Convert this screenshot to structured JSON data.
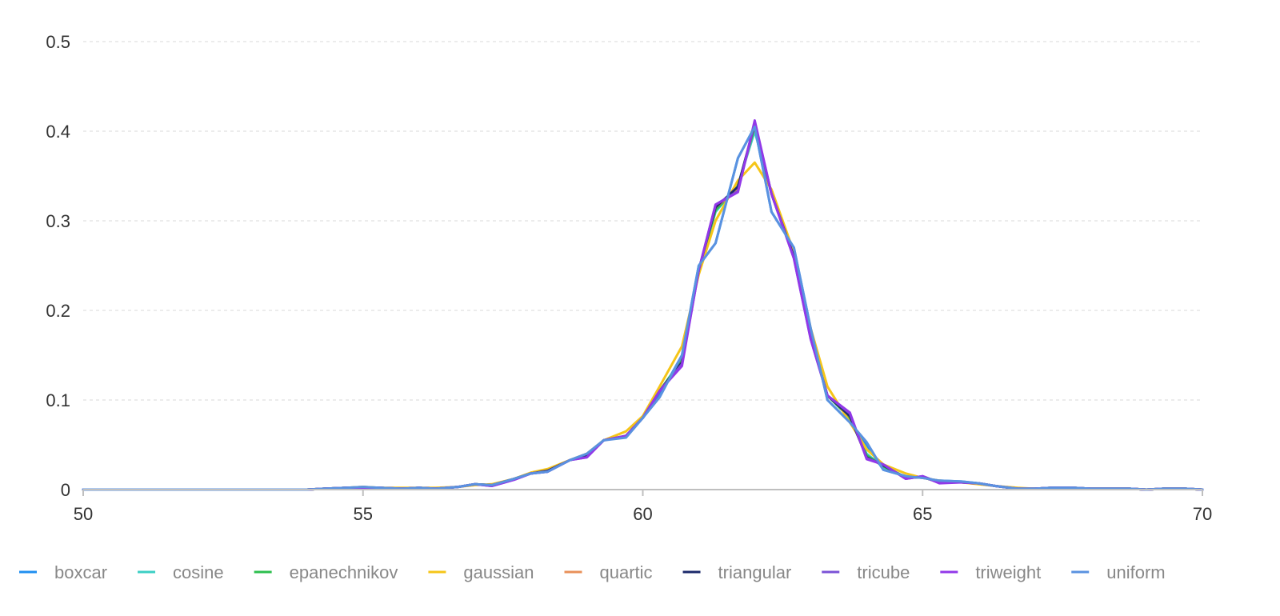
{
  "chart_data": {
    "type": "line",
    "title": "",
    "xlabel": "",
    "ylabel": "",
    "xlim": [
      50,
      70
    ],
    "ylim": [
      0,
      0.5
    ],
    "x_ticks": [
      "50",
      "55",
      "60",
      "65",
      "70"
    ],
    "y_ticks": [
      "0",
      "0.1",
      "0.2",
      "0.3",
      "0.4",
      "0.5"
    ],
    "grid": "horizontal dashed",
    "legend_position": "bottom",
    "x": [
      50,
      54,
      54.3,
      54.7,
      55,
      55.3,
      55.7,
      56,
      56.3,
      56.7,
      57,
      57.3,
      57.7,
      58,
      58.3,
      58.7,
      59,
      59.3,
      59.7,
      60,
      60.3,
      60.7,
      61,
      61.3,
      61.7,
      62,
      62.3,
      62.7,
      63,
      63.3,
      63.7,
      64,
      64.3,
      64.7,
      65,
      65.3,
      65.7,
      66,
      66.3,
      66.7,
      67,
      67.3,
      67.7,
      68,
      68.3,
      68.7,
      69,
      69.3,
      69.7,
      70
    ],
    "series": [
      {
        "name": "boxcar",
        "color": "#1f8ff0",
        "values": [
          0,
          0,
          0.001,
          0.002,
          0.003,
          0.002,
          0.001,
          0.002,
          0.001,
          0.003,
          0.006,
          0.005,
          0.012,
          0.018,
          0.02,
          0.033,
          0.04,
          0.055,
          0.06,
          0.08,
          0.105,
          0.15,
          0.25,
          0.275,
          0.37,
          0.405,
          0.31,
          0.27,
          0.18,
          0.1,
          0.075,
          0.05,
          0.022,
          0.015,
          0.013,
          0.01,
          0.009,
          0.007,
          0.004,
          0.001,
          0.001,
          0.002,
          0.002,
          0.001,
          0.001,
          0.001,
          0,
          0.001,
          0.001,
          0
        ]
      },
      {
        "name": "cosine",
        "color": "#3ccfc4",
        "values": [
          0,
          0,
          0.001,
          0.002,
          0.002,
          0.002,
          0.001,
          0.002,
          0.001,
          0.003,
          0.006,
          0.005,
          0.012,
          0.018,
          0.021,
          0.033,
          0.038,
          0.055,
          0.06,
          0.08,
          0.11,
          0.145,
          0.245,
          0.31,
          0.34,
          0.4,
          0.33,
          0.26,
          0.17,
          0.105,
          0.08,
          0.04,
          0.025,
          0.014,
          0.014,
          0.009,
          0.008,
          0.007,
          0.004,
          0.001,
          0.001,
          0.002,
          0.002,
          0.001,
          0.001,
          0.001,
          0,
          0.001,
          0.001,
          0
        ]
      },
      {
        "name": "epanechnikov",
        "color": "#2dbf4e",
        "values": [
          0,
          0,
          0.001,
          0.002,
          0.002,
          0.002,
          0.001,
          0.002,
          0.001,
          0.003,
          0.006,
          0.005,
          0.012,
          0.018,
          0.021,
          0.033,
          0.038,
          0.055,
          0.06,
          0.08,
          0.11,
          0.145,
          0.245,
          0.312,
          0.338,
          0.405,
          0.33,
          0.26,
          0.17,
          0.105,
          0.08,
          0.038,
          0.026,
          0.014,
          0.014,
          0.009,
          0.008,
          0.007,
          0.004,
          0.001,
          0.001,
          0.002,
          0.002,
          0.001,
          0.001,
          0.001,
          0,
          0.001,
          0.001,
          0
        ]
      },
      {
        "name": "gaussian",
        "color": "#f5c518",
        "values": [
          0,
          0,
          0.001,
          0.002,
          0.003,
          0.002,
          0.002,
          0.002,
          0.002,
          0.003,
          0.005,
          0.006,
          0.012,
          0.019,
          0.023,
          0.033,
          0.04,
          0.055,
          0.065,
          0.082,
          0.115,
          0.16,
          0.24,
          0.3,
          0.345,
          0.365,
          0.335,
          0.265,
          0.18,
          0.115,
          0.075,
          0.045,
          0.028,
          0.018,
          0.013,
          0.01,
          0.008,
          0.006,
          0.004,
          0.002,
          0.001,
          0.002,
          0.002,
          0.001,
          0.001,
          0.001,
          0,
          0.001,
          0.001,
          0
        ]
      },
      {
        "name": "quartic",
        "color": "#e8905a",
        "values": [
          0,
          0,
          0.001,
          0.002,
          0.002,
          0.002,
          0.001,
          0.002,
          0.001,
          0.003,
          0.006,
          0.005,
          0.012,
          0.018,
          0.021,
          0.033,
          0.037,
          0.055,
          0.06,
          0.08,
          0.11,
          0.142,
          0.245,
          0.315,
          0.335,
          0.408,
          0.33,
          0.26,
          0.17,
          0.105,
          0.082,
          0.036,
          0.027,
          0.013,
          0.014,
          0.008,
          0.008,
          0.007,
          0.004,
          0.001,
          0.001,
          0.002,
          0.002,
          0.001,
          0.001,
          0.001,
          0,
          0.001,
          0.001,
          0
        ]
      },
      {
        "name": "triangular",
        "color": "#1c2a6b",
        "values": [
          0,
          0,
          0.001,
          0.002,
          0.002,
          0.002,
          0.001,
          0.002,
          0.001,
          0.003,
          0.006,
          0.005,
          0.012,
          0.018,
          0.021,
          0.033,
          0.037,
          0.055,
          0.06,
          0.08,
          0.11,
          0.142,
          0.245,
          0.315,
          0.338,
          0.408,
          0.33,
          0.26,
          0.17,
          0.105,
          0.082,
          0.036,
          0.027,
          0.013,
          0.014,
          0.008,
          0.008,
          0.007,
          0.004,
          0.001,
          0.001,
          0.002,
          0.002,
          0.001,
          0.001,
          0.001,
          0,
          0.001,
          0.001,
          0
        ]
      },
      {
        "name": "tricube",
        "color": "#7b52d6",
        "values": [
          0,
          0,
          0.001,
          0.002,
          0.002,
          0.002,
          0.001,
          0.002,
          0.001,
          0.003,
          0.006,
          0.004,
          0.011,
          0.018,
          0.02,
          0.033,
          0.036,
          0.055,
          0.06,
          0.08,
          0.11,
          0.14,
          0.245,
          0.318,
          0.333,
          0.41,
          0.33,
          0.258,
          0.168,
          0.105,
          0.085,
          0.035,
          0.028,
          0.012,
          0.015,
          0.008,
          0.008,
          0.007,
          0.004,
          0.001,
          0.001,
          0.002,
          0.002,
          0.001,
          0.001,
          0.001,
          0,
          0.001,
          0.001,
          0
        ]
      },
      {
        "name": "triweight",
        "color": "#9238e8",
        "values": [
          0,
          0,
          0.001,
          0.002,
          0.002,
          0.002,
          0.001,
          0.002,
          0.001,
          0.003,
          0.006,
          0.004,
          0.011,
          0.018,
          0.02,
          0.033,
          0.036,
          0.055,
          0.06,
          0.08,
          0.11,
          0.138,
          0.245,
          0.318,
          0.332,
          0.412,
          0.33,
          0.258,
          0.168,
          0.105,
          0.086,
          0.034,
          0.028,
          0.012,
          0.015,
          0.007,
          0.008,
          0.007,
          0.004,
          0.001,
          0.001,
          0.002,
          0.002,
          0.001,
          0.001,
          0.001,
          0,
          0.001,
          0.001,
          0
        ]
      },
      {
        "name": "uniform",
        "color": "#5a92e0",
        "values": [
          0,
          0,
          0.001,
          0.002,
          0.003,
          0.002,
          0.001,
          0.002,
          0.001,
          0.003,
          0.006,
          0.005,
          0.012,
          0.018,
          0.02,
          0.033,
          0.04,
          0.055,
          0.058,
          0.08,
          0.103,
          0.15,
          0.25,
          0.275,
          0.37,
          0.405,
          0.31,
          0.27,
          0.18,
          0.1,
          0.075,
          0.053,
          0.022,
          0.015,
          0.013,
          0.01,
          0.009,
          0.007,
          0.004,
          0.001,
          0.001,
          0.002,
          0.002,
          0.001,
          0.001,
          0.001,
          0,
          0.001,
          0.001,
          0
        ]
      }
    ]
  }
}
